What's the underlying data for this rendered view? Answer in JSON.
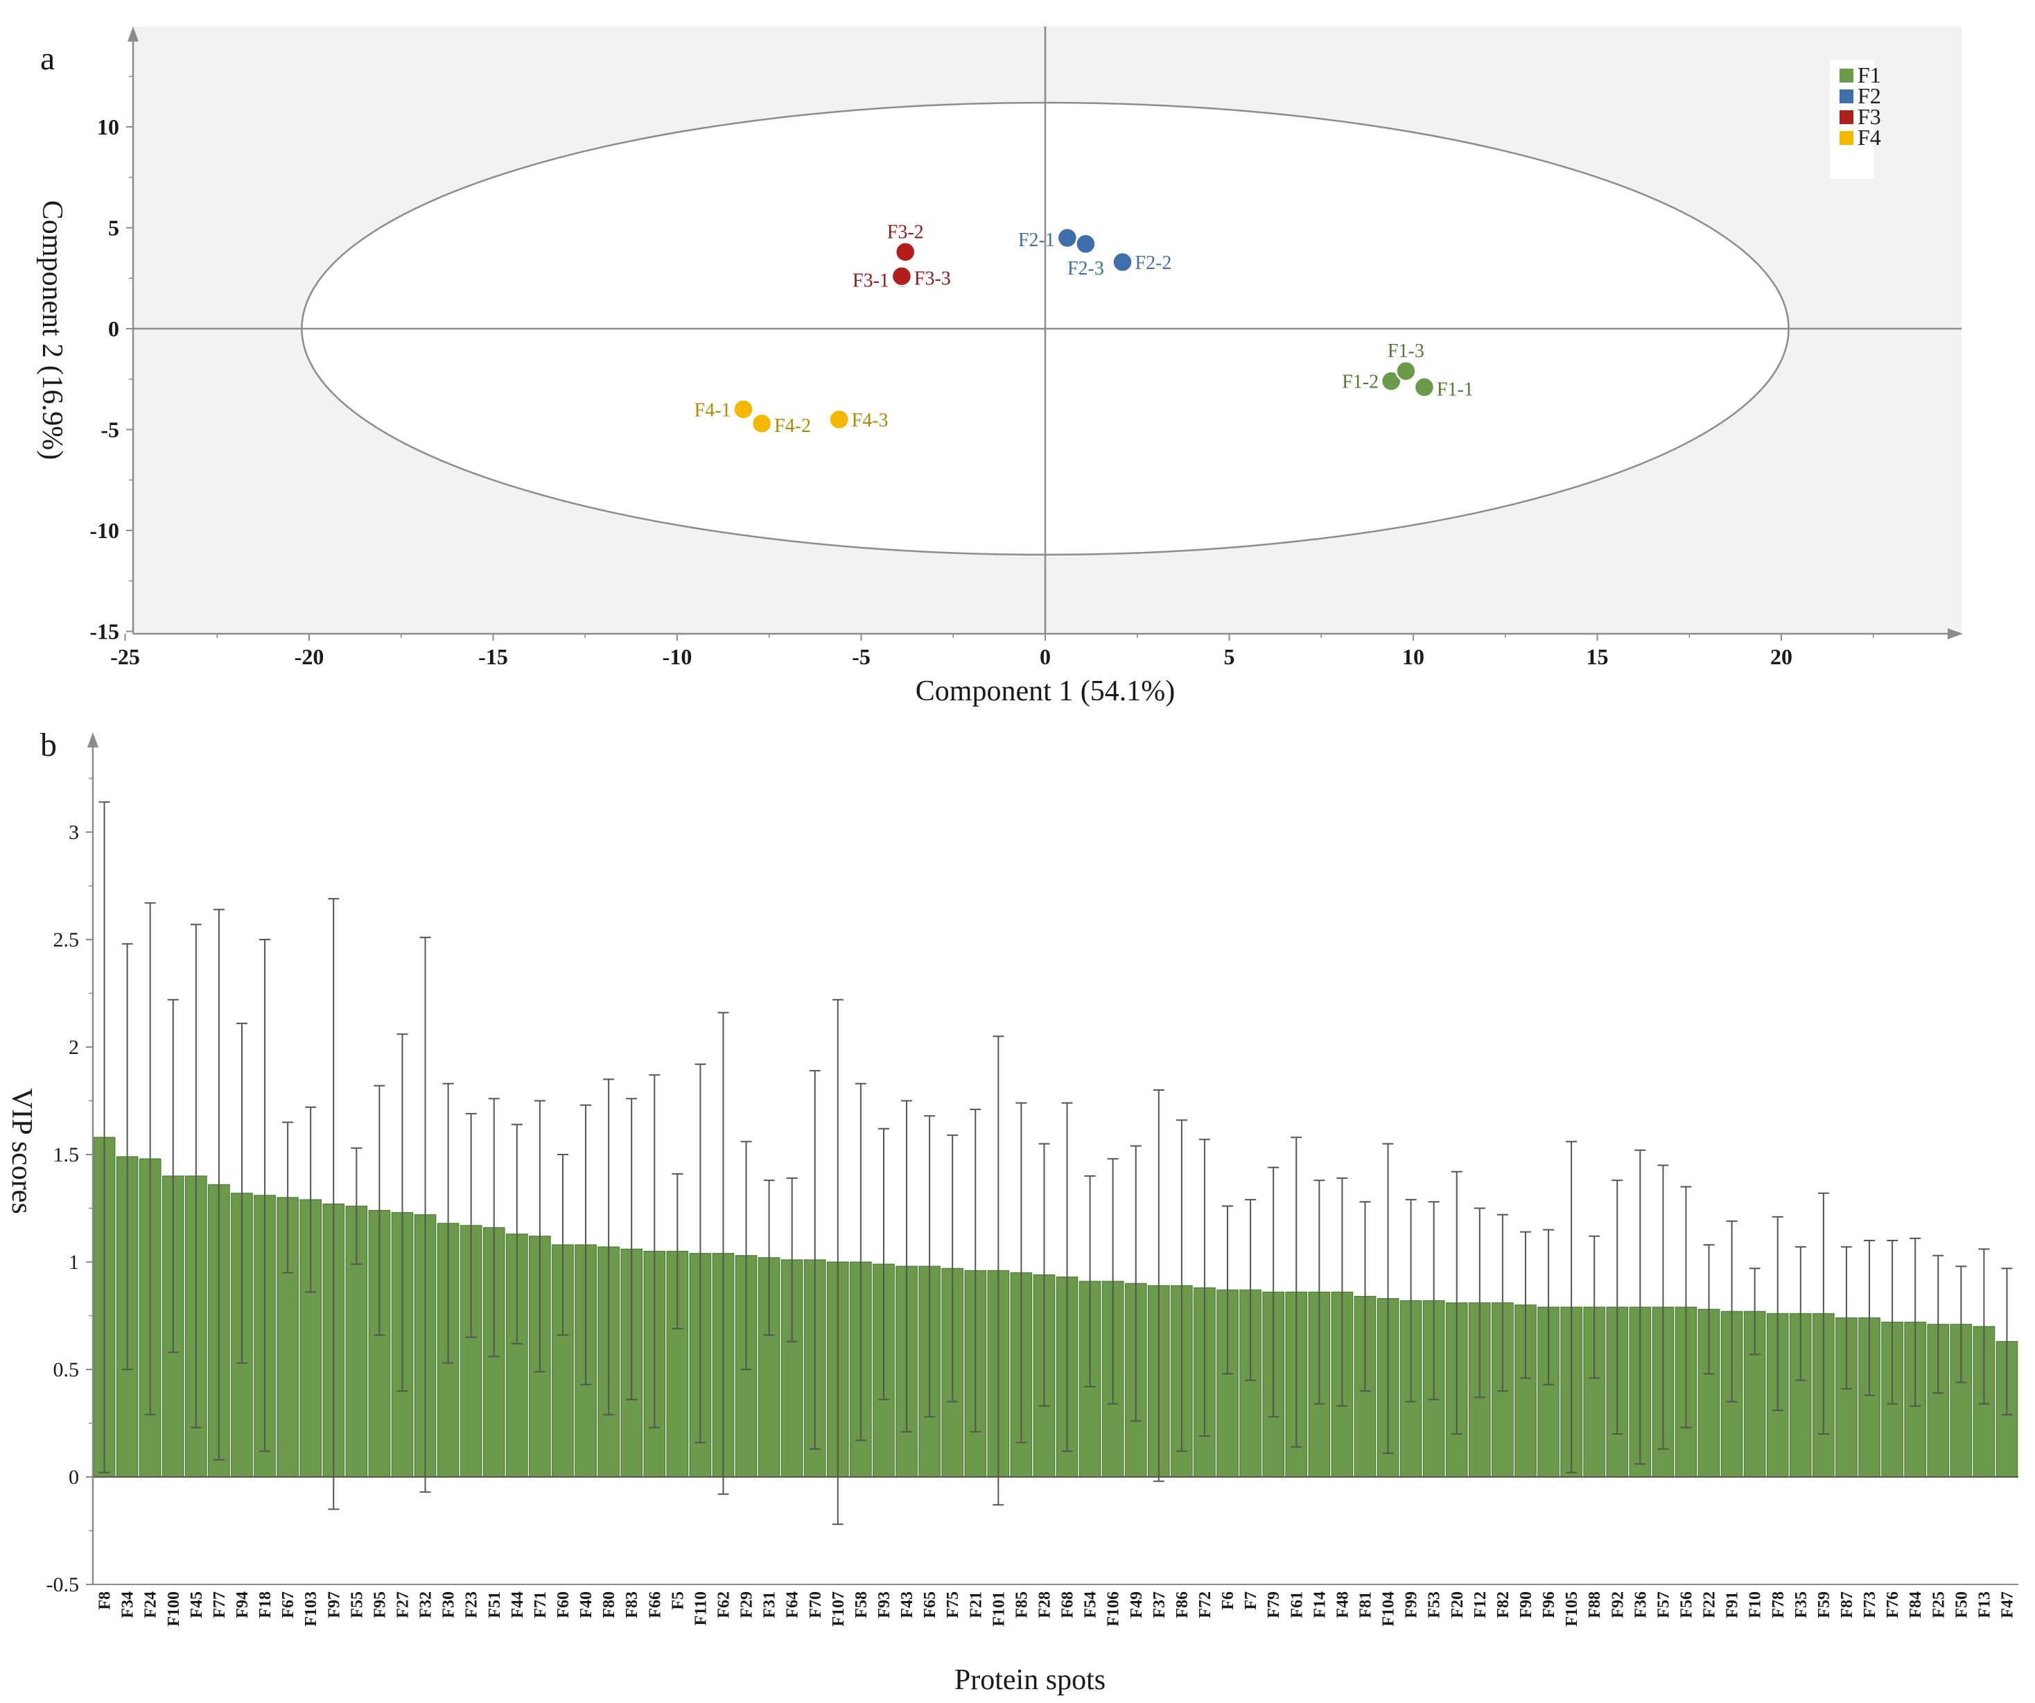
{
  "chart_data": [
    {
      "panel_label": "a",
      "type": "scatter",
      "xlabel": "Component 1 (54.1%)",
      "ylabel": "Component 2 (16.9%)",
      "xlim": [
        -25,
        25
      ],
      "ylim": [
        -15,
        15
      ],
      "xticks": [
        -25,
        -20,
        -15,
        -10,
        -5,
        0,
        5,
        10,
        15,
        20
      ],
      "yticks": [
        -15,
        -10,
        -5,
        0,
        5,
        10
      ],
      "ellipse": {
        "cx": 0,
        "cy": 0,
        "rx": 20.2,
        "ry": 11.2
      },
      "legend_position": "top-right",
      "series": [
        {
          "name": "F1",
          "color": "#6a9a4a",
          "label_color": "#4f7a33",
          "points": [
            {
              "label": "F1-1",
              "x": 10.3,
              "y": -2.9
            },
            {
              "label": "F1-2",
              "x": 9.4,
              "y": -2.6
            },
            {
              "label": "F1-3",
              "x": 9.8,
              "y": -2.1
            }
          ]
        },
        {
          "name": "F2",
          "color": "#3e6faa",
          "label_color": "#3e6faa",
          "points": [
            {
              "label": "F2-1",
              "x": 0.6,
              "y": 4.5
            },
            {
              "label": "F2-2",
              "x": 2.1,
              "y": 3.3
            },
            {
              "label": "F2-3",
              "x": 1.1,
              "y": 4.2
            }
          ]
        },
        {
          "name": "F3",
          "color": "#b01e1e",
          "label_color": "#8e1a1a",
          "points": [
            {
              "label": "F3-1",
              "x": -3.9,
              "y": 2.5
            },
            {
              "label": "F3-2",
              "x": -3.8,
              "y": 3.8
            },
            {
              "label": "F3-3",
              "x": -3.9,
              "y": 2.6
            }
          ]
        },
        {
          "name": "F4",
          "color": "#f5b800",
          "label_color": "#b38700",
          "points": [
            {
              "label": "F4-1",
              "x": -8.2,
              "y": -4.0
            },
            {
              "label": "F4-2",
              "x": -7.7,
              "y": -4.7
            },
            {
              "label": "F4-3",
              "x": -5.6,
              "y": -4.5
            }
          ]
        }
      ]
    },
    {
      "panel_label": "b",
      "type": "bar",
      "xlabel": "Protein spots",
      "ylabel": "VIP scores",
      "ylim": [
        -0.5,
        3.4
      ],
      "yticks": [
        -0.5,
        0,
        0.5,
        1,
        1.5,
        2,
        2.5,
        3
      ],
      "ytick_labels": [
        "-0.5",
        "0",
        "0.5",
        "1",
        "1.5",
        "2",
        "2.5",
        "3"
      ],
      "bar_color": "#6a9a4a",
      "categories": [
        "F8",
        "F34",
        "F24",
        "F100",
        "F45",
        "F77",
        "F94",
        "F18",
        "F67",
        "F103",
        "F97",
        "F55",
        "F95",
        "F27",
        "F32",
        "F30",
        "F23",
        "F51",
        "F44",
        "F71",
        "F60",
        "F40",
        "F80",
        "F83",
        "F66",
        "F5",
        "F110",
        "F62",
        "F29",
        "F31",
        "F64",
        "F70",
        "F107",
        "F58",
        "F93",
        "F43",
        "F65",
        "F75",
        "F21",
        "F101",
        "F85",
        "F28",
        "F68",
        "F54",
        "F106",
        "F49",
        "F37",
        "F86",
        "F72",
        "F6",
        "F7",
        "F79",
        "F61",
        "F14",
        "F48",
        "F81",
        "F104",
        "F99",
        "F53",
        "F20",
        "F12",
        "F82",
        "F90",
        "F96",
        "F105",
        "F88",
        "F92",
        "F36",
        "F57",
        "F56",
        "F22",
        "F91",
        "F10",
        "F78",
        "F35",
        "F59",
        "F87",
        "F73",
        "F76",
        "F84",
        "F25",
        "F50",
        "F13",
        "F47"
      ],
      "values": [
        1.58,
        1.49,
        1.48,
        1.4,
        1.4,
        1.36,
        1.32,
        1.31,
        1.3,
        1.29,
        1.27,
        1.26,
        1.24,
        1.23,
        1.22,
        1.18,
        1.17,
        1.16,
        1.13,
        1.12,
        1.08,
        1.08,
        1.07,
        1.06,
        1.05,
        1.05,
        1.04,
        1.04,
        1.03,
        1.02,
        1.01,
        1.01,
        1.0,
        1.0,
        0.99,
        0.98,
        0.98,
        0.97,
        0.96,
        0.96,
        0.95,
        0.94,
        0.93,
        0.91,
        0.91,
        0.9,
        0.89,
        0.89,
        0.88,
        0.87,
        0.87,
        0.86,
        0.86,
        0.86,
        0.86,
        0.84,
        0.83,
        0.82,
        0.82,
        0.81,
        0.81,
        0.81,
        0.8,
        0.79,
        0.79,
        0.79,
        0.79,
        0.79,
        0.79,
        0.79,
        0.78,
        0.77,
        0.77,
        0.76,
        0.76,
        0.76,
        0.74,
        0.74,
        0.72,
        0.72,
        0.71,
        0.71,
        0.7,
        0.63
      ],
      "error": [
        1.56,
        0.99,
        1.19,
        0.82,
        1.17,
        1.28,
        0.79,
        1.19,
        0.35,
        0.43,
        1.42,
        0.27,
        0.58,
        0.83,
        1.29,
        0.65,
        0.52,
        0.6,
        0.51,
        0.63,
        0.42,
        0.65,
        0.78,
        0.7,
        0.82,
        0.36,
        0.88,
        1.12,
        0.53,
        0.36,
        0.38,
        0.88,
        1.22,
        0.83,
        0.63,
        0.77,
        0.7,
        0.62,
        0.75,
        1.09,
        0.79,
        0.61,
        0.81,
        0.49,
        0.57,
        0.64,
        0.91,
        0.77,
        0.69,
        0.39,
        0.42,
        0.58,
        0.72,
        0.52,
        0.53,
        0.44,
        0.72,
        0.47,
        0.46,
        0.61,
        0.44,
        0.41,
        0.34,
        0.36,
        0.77,
        0.33,
        0.59,
        0.73,
        0.66,
        0.56,
        0.3,
        0.42,
        0.2,
        0.45,
        0.31,
        0.56,
        0.33,
        0.36,
        0.38,
        0.39,
        0.32,
        0.27,
        0.36,
        0.34
      ]
    }
  ]
}
